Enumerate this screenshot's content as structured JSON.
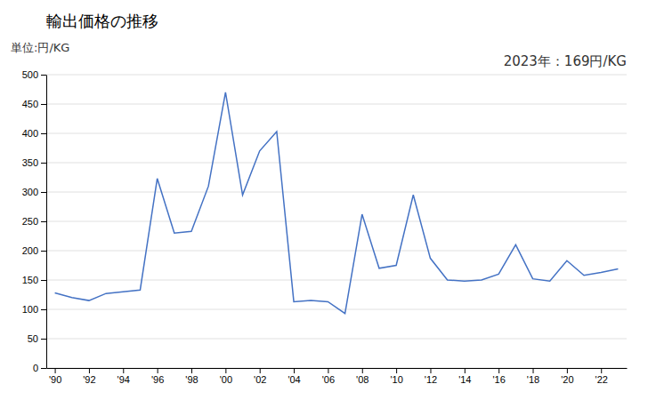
{
  "chart_data": {
    "type": "line",
    "title": "輸出価格の推移",
    "y_label": "単位:円/KG",
    "annotation": "2023年：169円/KG",
    "x": [
      1990,
      1991,
      1992,
      1993,
      1994,
      1995,
      1996,
      1997,
      1998,
      1999,
      2000,
      2001,
      2002,
      2003,
      2004,
      2005,
      2006,
      2007,
      2008,
      2009,
      2010,
      2011,
      2012,
      2013,
      2014,
      2015,
      2016,
      2017,
      2018,
      2019,
      2020,
      2021,
      2022,
      2023
    ],
    "values": [
      128,
      120,
      115,
      127,
      130,
      133,
      323,
      230,
      233,
      310,
      470,
      295,
      370,
      403,
      113,
      115,
      113,
      93,
      262,
      170,
      175,
      295,
      187,
      150,
      148,
      150,
      160,
      210,
      152,
      148,
      183,
      158,
      163,
      169
    ],
    "color": "#4472c4",
    "xlim": [
      1989.5,
      2023.5
    ],
    "xticks": [
      {
        "value": 1990,
        "label": "'90"
      },
      {
        "value": 1992,
        "label": "'92"
      },
      {
        "value": 1994,
        "label": "'94"
      },
      {
        "value": 1996,
        "label": "'96"
      },
      {
        "value": 1998,
        "label": "'98"
      },
      {
        "value": 2000,
        "label": "'00"
      },
      {
        "value": 2002,
        "label": "'02"
      },
      {
        "value": 2004,
        "label": "'04"
      },
      {
        "value": 2006,
        "label": "'06"
      },
      {
        "value": 2008,
        "label": "'08"
      },
      {
        "value": 2010,
        "label": "'10"
      },
      {
        "value": 2012,
        "label": "'12"
      },
      {
        "value": 2014,
        "label": "'14"
      },
      {
        "value": 2016,
        "label": "'16"
      },
      {
        "value": 2018,
        "label": "'18"
      },
      {
        "value": 2020,
        "label": "'20"
      },
      {
        "value": 2022,
        "label": "'22"
      }
    ],
    "ylim": [
      0,
      500
    ],
    "yticks": [
      0,
      50,
      100,
      150,
      200,
      250,
      300,
      350,
      400,
      450,
      500
    ],
    "grid": "y"
  }
}
